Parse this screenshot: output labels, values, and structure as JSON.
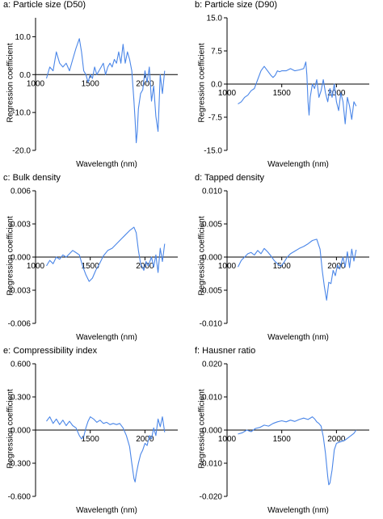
{
  "colors": {
    "series": "#4a86e8",
    "axis": "#000000"
  },
  "chart_data": [
    {
      "type": "line",
      "title": "a: Particle size (D50)",
      "xlabel": "Wavelength (nm)",
      "ylabel": "Regression coefficient",
      "xlim": [
        1000,
        2300
      ],
      "ylim": [
        -20,
        15
      ],
      "yticks": [
        "10.0",
        "0.0",
        "-10.0",
        "-20.0"
      ],
      "ytick_values": [
        10,
        0,
        -10,
        -20
      ],
      "xticks": [
        "1000",
        "1500",
        "2000"
      ],
      "xtick_values": [
        1000,
        1500,
        2000
      ],
      "series": [
        {
          "x": [
            1100,
            1130,
            1160,
            1190,
            1220,
            1250,
            1280,
            1310,
            1340,
            1370,
            1400,
            1420,
            1440,
            1460,
            1480,
            1500,
            1520,
            1540,
            1560,
            1580,
            1600,
            1620,
            1640,
            1660,
            1680,
            1700,
            1720,
            1740,
            1760,
            1780,
            1800,
            1820,
            1840,
            1860,
            1880,
            1900,
            1910,
            1920,
            1930,
            1940,
            1960,
            1980,
            2000,
            2020,
            2040,
            2060,
            2080,
            2100,
            2120,
            2140,
            2160,
            2180
          ],
          "y": [
            -1,
            2,
            1,
            6,
            3,
            2,
            3,
            1,
            4,
            7,
            9.5,
            6,
            1,
            0,
            -2,
            0,
            -1,
            2,
            0,
            1,
            2,
            3,
            0,
            2,
            3,
            2,
            4,
            3,
            6,
            3,
            8,
            3,
            6,
            4,
            1,
            -7,
            -12,
            -18,
            -15,
            -9,
            -5,
            -4,
            1,
            -2,
            2,
            -7,
            -3,
            -11,
            -15,
            0,
            -5,
            1
          ]
        }
      ]
    },
    {
      "type": "line",
      "title": "b: Particle size (D90)",
      "xlabel": "Wavelength (nm)",
      "ylabel": "Regression coefficient",
      "xlim": [
        1000,
        2300
      ],
      "ylim": [
        -15,
        15
      ],
      "yticks": [
        "15.0",
        "7.5",
        "0.0",
        "-7.5",
        "-15.0"
      ],
      "ytick_values": [
        15,
        7.5,
        0,
        -7.5,
        -15
      ],
      "xticks": [
        "1000",
        "1500",
        "2000"
      ],
      "xtick_values": [
        1000,
        1500,
        2000
      ],
      "series": [
        {
          "x": [
            1100,
            1130,
            1160,
            1190,
            1220,
            1250,
            1280,
            1310,
            1340,
            1370,
            1400,
            1420,
            1440,
            1460,
            1480,
            1500,
            1540,
            1580,
            1620,
            1660,
            1700,
            1720,
            1730,
            1740,
            1750,
            1760,
            1780,
            1800,
            1820,
            1840,
            1860,
            1880,
            1900,
            1920,
            1940,
            1960,
            1980,
            2000,
            2020,
            2040,
            2060,
            2080,
            2100,
            2120,
            2140,
            2160,
            2180
          ],
          "y": [
            -4.5,
            -4,
            -3,
            -2.5,
            -1.5,
            -1,
            1,
            3,
            4,
            3,
            2,
            1.5,
            2,
            3,
            2.8,
            3,
            3,
            3.5,
            3,
            3.2,
            3.5,
            5,
            2,
            -4,
            -7,
            -3,
            0,
            -1,
            1,
            -3,
            -1.5,
            1,
            -2,
            -4,
            -1,
            -3,
            0,
            -4,
            -6,
            -2,
            -4,
            -9,
            -3,
            -5,
            -8,
            -4,
            -5
          ]
        }
      ]
    },
    {
      "type": "line",
      "title": "c: Bulk density",
      "xlabel": "Wavelength (nm)",
      "ylabel": "Regression coefficient",
      "xlim": [
        1000,
        2300
      ],
      "ylim": [
        -0.006,
        0.006
      ],
      "yticks": [
        "0.006",
        "0.003",
        "0.000",
        "-0.003",
        "-0.006"
      ],
      "ytick_values": [
        0.006,
        0.003,
        0,
        -0.003,
        -0.006
      ],
      "xticks": [
        "1000",
        "1500",
        "2000"
      ],
      "xtick_values": [
        1000,
        1500,
        2000
      ],
      "series": [
        {
          "x": [
            1100,
            1130,
            1160,
            1190,
            1220,
            1250,
            1280,
            1310,
            1340,
            1370,
            1400,
            1430,
            1460,
            1490,
            1520,
            1550,
            1580,
            1620,
            1660,
            1700,
            1740,
            1780,
            1820,
            1860,
            1900,
            1920,
            1940,
            1960,
            1990,
            2010,
            2030,
            2060,
            2080,
            2100,
            2120,
            2140,
            2160,
            2180
          ],
          "y": [
            -0.0008,
            -0.0003,
            -0.0006,
            0,
            -0.0002,
            0.0002,
            0,
            0.0003,
            0.0006,
            0.0004,
            0.0002,
            -0.0008,
            -0.0016,
            -0.0022,
            -0.0019,
            -0.0012,
            -0.0007,
            0.0001,
            0.0006,
            0.0008,
            0.0012,
            0.0016,
            0.002,
            0.0024,
            0.0027,
            0.0022,
            0.0006,
            -0.0006,
            -0.0012,
            -0.0004,
            -0.0008,
            0,
            -0.0009,
            0.0002,
            -0.0014,
            0.0008,
            -0.0004,
            0.0012
          ]
        }
      ]
    },
    {
      "type": "line",
      "title": "d: Tapped density",
      "xlabel": "Wavelength (nm)",
      "ylabel": "Regression coefficient",
      "xlim": [
        1000,
        2300
      ],
      "ylim": [
        -0.01,
        0.01
      ],
      "yticks": [
        "0.010",
        "0.005",
        "0.000",
        "-0.005",
        "-0.010"
      ],
      "ytick_values": [
        0.01,
        0.005,
        0,
        -0.005,
        -0.01
      ],
      "xticks": [
        "1000",
        "1500",
        "2000"
      ],
      "xtick_values": [
        1000,
        1500,
        2000
      ],
      "series": [
        {
          "x": [
            1100,
            1130,
            1160,
            1190,
            1220,
            1250,
            1280,
            1310,
            1340,
            1370,
            1400,
            1430,
            1460,
            1490,
            1520,
            1550,
            1580,
            1620,
            1660,
            1700,
            1740,
            1780,
            1820,
            1850,
            1870,
            1890,
            1910,
            1930,
            1950,
            1970,
            1990,
            2010,
            2030,
            2060,
            2080,
            2100,
            2120,
            2140,
            2160,
            2180
          ],
          "y": [
            -0.0015,
            -0.0005,
            0,
            0.0005,
            0.0007,
            0.0003,
            0.001,
            0.0005,
            0.0013,
            0.0008,
            0.0002,
            -0.0005,
            -0.001,
            -0.0014,
            -0.0008,
            0,
            0.0005,
            0.0009,
            0.0013,
            0.0016,
            0.002,
            0.0025,
            0.0027,
            0.0012,
            -0.002,
            -0.0045,
            -0.0065,
            -0.0038,
            -0.004,
            -0.002,
            -0.0028,
            -0.0012,
            -0.0018,
            0,
            -0.0015,
            0.0008,
            -0.0016,
            0.0012,
            -0.0006,
            0.0011
          ]
        }
      ]
    },
    {
      "type": "line",
      "title": "e: Compressibility index",
      "xlabel": "Wavelength (nm)",
      "ylabel": "Regression coefficient",
      "xlim": [
        1000,
        2300
      ],
      "ylim": [
        -0.6,
        0.6
      ],
      "yticks": [
        "0.600",
        "0.300",
        "0.000",
        "-0.300",
        "-0.600"
      ],
      "ytick_values": [
        0.6,
        0.3,
        0,
        -0.3,
        -0.6
      ],
      "xticks": [
        "1500",
        "2000"
      ],
      "xtick_values": [
        1500,
        2000
      ],
      "series": [
        {
          "x": [
            1100,
            1130,
            1160,
            1190,
            1220,
            1250,
            1280,
            1310,
            1340,
            1370,
            1400,
            1420,
            1440,
            1460,
            1480,
            1500,
            1530,
            1560,
            1590,
            1620,
            1650,
            1680,
            1710,
            1740,
            1770,
            1800,
            1830,
            1860,
            1880,
            1900,
            1910,
            1920,
            1940,
            1960,
            1980,
            2000,
            2020,
            2040,
            2060,
            2080,
            2100,
            2120,
            2140,
            2160,
            2180
          ],
          "y": [
            0.08,
            0.12,
            0.06,
            0.1,
            0.05,
            0.09,
            0.04,
            0.08,
            0.04,
            0.02,
            -0.05,
            -0.08,
            -0.06,
            0.02,
            0.08,
            0.12,
            0.1,
            0.07,
            0.09,
            0.06,
            0.07,
            0.05,
            0.06,
            0.05,
            0.06,
            0.02,
            -0.05,
            -0.15,
            -0.3,
            -0.44,
            -0.47,
            -0.4,
            -0.3,
            -0.22,
            -0.18,
            -0.12,
            -0.14,
            -0.05,
            -0.08,
            0.02,
            -0.05,
            0.1,
            0.03,
            0.12,
            -0.02
          ]
        }
      ]
    },
    {
      "type": "line",
      "title": "f: Hausner ratio",
      "xlabel": "Wavelength (nm)",
      "ylabel": "Regression coefficient",
      "xlim": [
        1000,
        2300
      ],
      "ylim": [
        -0.02,
        0.02
      ],
      "yticks": [
        "0.020",
        "0.010",
        "0.000",
        "-0.010",
        "-0.020"
      ],
      "ytick_values": [
        0.02,
        0.01,
        0,
        -0.01,
        -0.02
      ],
      "xticks": [
        "1000",
        "1500",
        "2000"
      ],
      "xtick_values": [
        1000,
        1500,
        2000
      ],
      "series": [
        {
          "x": [
            1100,
            1140,
            1180,
            1220,
            1260,
            1300,
            1340,
            1380,
            1420,
            1460,
            1500,
            1540,
            1580,
            1620,
            1660,
            1700,
            1740,
            1780,
            1800,
            1820,
            1840,
            1860,
            1880,
            1900,
            1920,
            1930,
            1940,
            1960,
            1980,
            2000,
            2040,
            2080,
            2120,
            2160,
            2180
          ],
          "y": [
            -0.0012,
            -0.0008,
            0,
            -0.0005,
            0.0005,
            0.0008,
            0.0015,
            0.0012,
            0.002,
            0.0025,
            0.0028,
            0.0025,
            0.003,
            0.0026,
            0.0032,
            0.0036,
            0.0032,
            0.004,
            0.0034,
            0.0025,
            0.002,
            0.0012,
            -0.002,
            -0.007,
            -0.014,
            -0.0165,
            -0.016,
            -0.012,
            -0.006,
            -0.004,
            -0.0035,
            -0.003,
            -0.002,
            -0.001,
            0
          ]
        }
      ]
    }
  ]
}
